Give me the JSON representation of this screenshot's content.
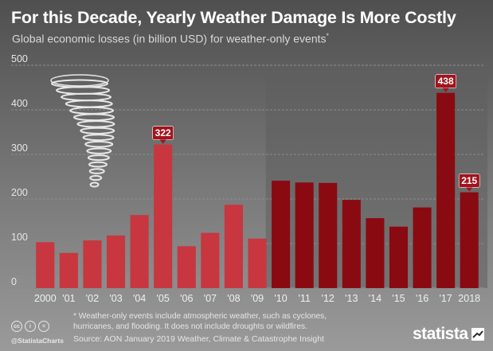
{
  "header": {
    "title": "For this Decade, Yearly Weather Damage Is More Costly",
    "subtitle": "Global economic losses (in billion USD) for weather-only events",
    "subtitle_mark": "*"
  },
  "chart_data": {
    "type": "bar",
    "title": "For this Decade, Yearly Weather Damage Is More Costly",
    "subtitle": "Global economic losses (in billion USD) for weather-only events*",
    "categories": [
      "2000",
      "'01",
      "'02",
      "'03",
      "'04",
      "'05",
      "'06",
      "'07",
      "'08",
      "'09",
      "'10",
      "'11",
      "'12",
      "'13",
      "'14",
      "'15",
      "'16",
      "'17",
      "2018"
    ],
    "values": [
      103,
      79,
      107,
      118,
      164,
      322,
      94,
      124,
      187,
      111,
      241,
      237,
      236,
      198,
      157,
      138,
      181,
      438,
      215
    ],
    "data_labels": [
      {
        "index": 5,
        "text": "322"
      },
      {
        "index": 17,
        "text": "438"
      },
      {
        "index": 18,
        "text": "215"
      }
    ],
    "ylim": [
      0,
      500
    ],
    "yticks": [
      "0",
      "100",
      "200",
      "300",
      "400",
      "500"
    ],
    "grid": true,
    "highlight_from_index": 10,
    "colors": {
      "first_decade": "#c8363f",
      "second_decade": "#8a0a12",
      "label_bg": "#a1141c",
      "grid": "#8c8c8c"
    }
  },
  "illustration": {
    "icon": "tornado-icon"
  },
  "footer": {
    "footnote": "* Weather-only events include atmospheric weather, such as cyclones, hurricanes, and flooding. It does not include droughts or wildfires.",
    "source": "Source: AON January 2019 Weather, Climate & Catastrophe Insight",
    "handle": "@StatistaCharts",
    "license_icons": [
      "cc-icon",
      "person-icon",
      "equals-icon"
    ],
    "cc_icon_text": "cc",
    "by_icon_text": "i",
    "nd_icon_text": "=",
    "logo_text": "statista"
  }
}
